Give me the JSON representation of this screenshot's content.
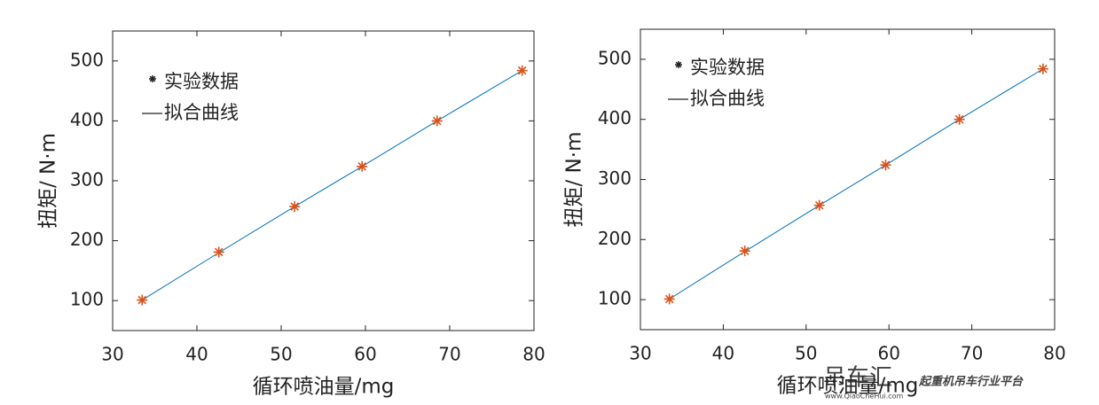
{
  "chart_data": [
    {
      "type": "line",
      "xlabel": "循环喷油量/mg",
      "ylabel": "扭矩/ N·m",
      "x": [
        33.5,
        42.6,
        51.6,
        59.6,
        68.5,
        78.6
      ],
      "series": [
        {
          "name": "实验数据",
          "color": "#d95319",
          "marker": "asterisk",
          "line": false,
          "values": [
            101,
            181,
            257,
            324,
            400,
            484
          ]
        },
        {
          "name": "拟合曲线",
          "color": "#0072bd",
          "marker": "none",
          "line": true,
          "values": [
            101,
            180,
            257,
            324,
            400,
            484
          ]
        }
      ],
      "xlim": [
        30,
        80
      ],
      "xticks": [
        30,
        40,
        50,
        60,
        70,
        80
      ],
      "ylim": [
        50,
        550
      ],
      "yticks": [
        100,
        200,
        300,
        400,
        500
      ],
      "grid": false
    },
    {
      "type": "line",
      "xlabel": "循环喷油量/mg",
      "ylabel": "扭矩/ N·m",
      "x": [
        33.5,
        42.6,
        51.6,
        59.6,
        68.5,
        78.6
      ],
      "series": [
        {
          "name": "实验数据",
          "color": "#d95319",
          "marker": "asterisk",
          "line": false,
          "values": [
            101,
            181,
            257,
            324,
            400,
            484
          ]
        },
        {
          "name": "拟合曲线",
          "color": "#0072bd",
          "marker": "none",
          "line": true,
          "values": [
            101,
            180,
            257,
            324,
            400,
            484
          ]
        }
      ],
      "xlim": [
        30,
        80
      ],
      "xticks": [
        30,
        40,
        50,
        60,
        70,
        80
      ],
      "ylim": [
        50,
        550
      ],
      "yticks": [
        100,
        200,
        300,
        400,
        500
      ],
      "grid": false
    }
  ],
  "watermark": {
    "brand": "吊车汇",
    "slogan": "起重机吊车行业平台",
    "url": "www.QiaoCheHui.com"
  }
}
